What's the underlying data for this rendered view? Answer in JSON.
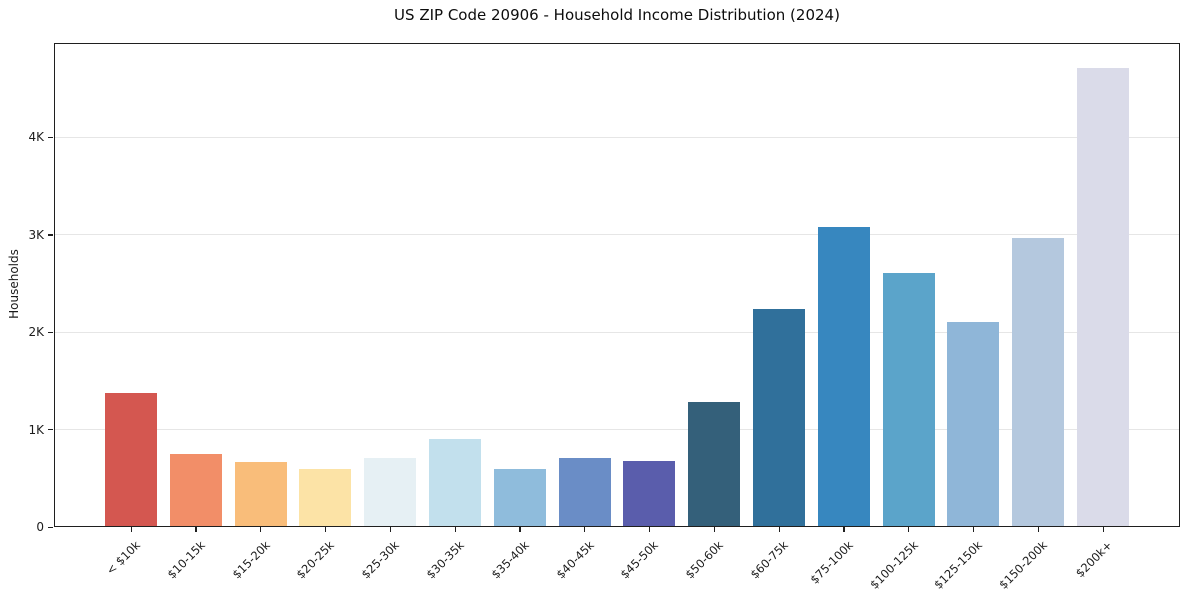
{
  "window": {
    "title": "US ZIP Code 20906 - Household Income Distribution (2024)"
  },
  "chart_data": {
    "type": "bar",
    "title": "US ZIP Code 20906 - Household Income Distribution (2024)",
    "xlabel": "",
    "ylabel": "Households",
    "categories": [
      "< $10k",
      "$10-15k",
      "$15-20k",
      "$20-25k",
      "$25-30k",
      "$30-35k",
      "$35-40k",
      "$40-45k",
      "$45-50k",
      "$50-60k",
      "$60-75k",
      "$75-100k",
      "$100-125k",
      "$125-150k",
      "$150-200k",
      "$200k+"
    ],
    "values": [
      1380,
      750,
      670,
      600,
      710,
      900,
      600,
      705,
      680,
      1285,
      2240,
      3085,
      2610,
      2110,
      2965,
      4710
    ],
    "bar_colors": [
      "#d45750",
      "#f28e68",
      "#f9bd7a",
      "#fce3a6",
      "#e6f0f4",
      "#c2e0ed",
      "#8fbcdc",
      "#6a8dc6",
      "#5a5dac",
      "#34607a",
      "#30709b",
      "#3787bf",
      "#5ba4ca",
      "#8fb6d8",
      "#b4c8de",
      "#dadbe9"
    ],
    "ylim": [
      0,
      4970
    ],
    "ytick_values": [
      0,
      1000,
      2000,
      3000,
      4000
    ],
    "ytick_labels": [
      "0",
      "1K",
      "2K",
      "3K",
      "4K"
    ],
    "grid": "horizontal",
    "gridline_color": "#e6e6e6",
    "background_color": "#ffffff",
    "legend": "none"
  }
}
